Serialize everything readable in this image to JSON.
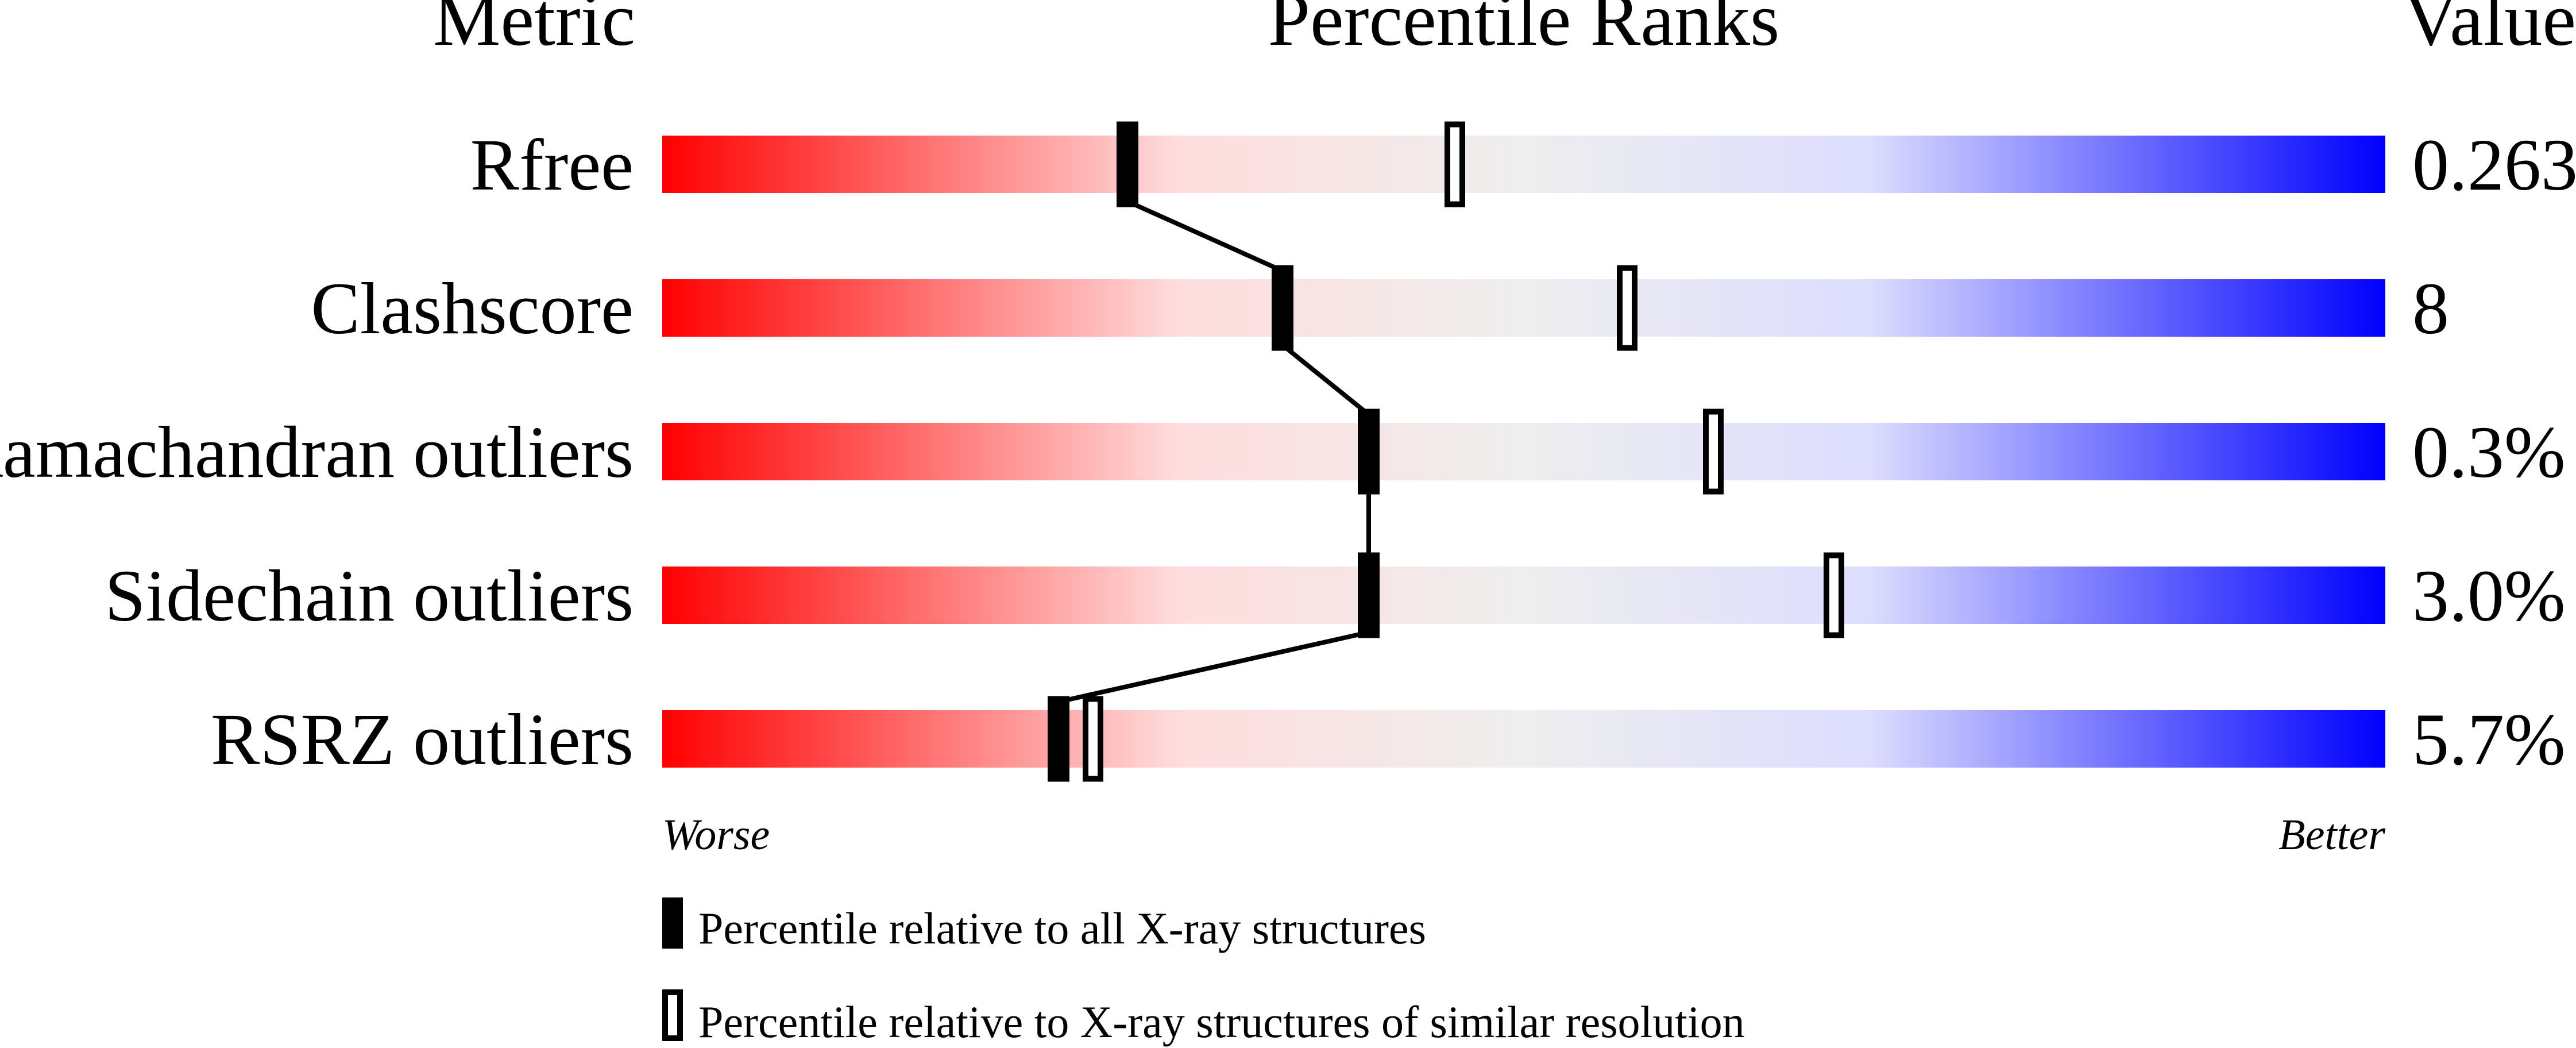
{
  "chart_data": {
    "type": "percentile-slider",
    "headers": {
      "metric": "Metric",
      "ranks": "Percentile Ranks",
      "value": "Value"
    },
    "xlim": [
      0,
      100
    ],
    "axis_labels": {
      "left": "Worse",
      "right": "Better"
    },
    "rows": [
      {
        "metric": "Rfree",
        "value": "0.263",
        "percentile_all": 27,
        "percentile_similar": 46
      },
      {
        "metric": "Clashscore",
        "value": "8",
        "percentile_all": 36,
        "percentile_similar": 56
      },
      {
        "metric": "Ramachandran outliers",
        "value": "0.3%",
        "percentile_all": 41,
        "percentile_similar": 61
      },
      {
        "metric": "Sidechain outliers",
        "value": "3.0%",
        "percentile_all": 41,
        "percentile_similar": 68
      },
      {
        "metric": "RSRZ outliers",
        "value": "5.7%",
        "percentile_all": 23,
        "percentile_similar": 25
      }
    ],
    "legend": {
      "all": "Percentile relative to all X-ray structures",
      "similar": "Percentile relative to X-ray structures of similar resolution"
    },
    "colors": {
      "worse": "#ff0000",
      "middle": "#eeeeee",
      "better": "#0000ff",
      "marker": "#000000"
    }
  }
}
